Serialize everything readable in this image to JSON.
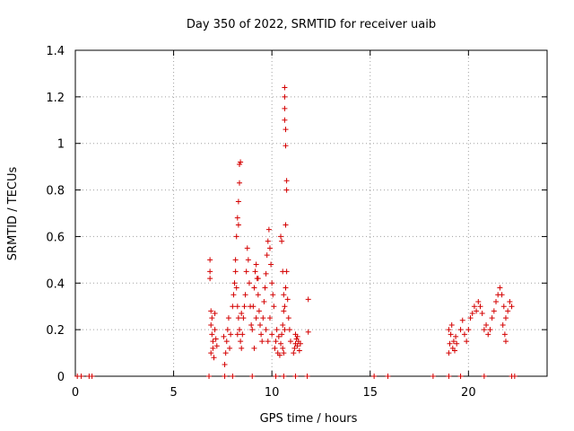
{
  "chart_data": {
    "type": "scatter",
    "title": "Day 350 of 2022, SRMTID for receiver uaib",
    "xlabel": "GPS time / hours",
    "ylabel": "SRMTID / TECUs",
    "xlim": [
      0,
      24
    ],
    "ylim": [
      0,
      1.4
    ],
    "xticks": [
      0,
      5,
      10,
      15,
      20
    ],
    "yticks": [
      0,
      0.2,
      0.4,
      0.6,
      0.8,
      1,
      1.2,
      1.4
    ],
    "ytick_labels": [
      "0",
      "0.2",
      "0.4",
      "0.6",
      "0.8",
      "1",
      "1.2",
      "1.4"
    ],
    "marker": "+",
    "color": "#d40000",
    "grid": true,
    "series": [
      {
        "name": "SRMTID",
        "points": [
          [
            0.1,
            0
          ],
          [
            0.3,
            0
          ],
          [
            0.7,
            0
          ],
          [
            0.85,
            0
          ],
          [
            6.8,
            0
          ],
          [
            7.6,
            0
          ],
          [
            8.0,
            0
          ],
          [
            9.0,
            0
          ],
          [
            10.2,
            0
          ],
          [
            10.6,
            0
          ],
          [
            11.2,
            0
          ],
          [
            11.8,
            0
          ],
          [
            15.2,
            0
          ],
          [
            15.9,
            0
          ],
          [
            18.2,
            0
          ],
          [
            19.0,
            0
          ],
          [
            19.6,
            0
          ],
          [
            20.8,
            0
          ],
          [
            22.2,
            0
          ],
          [
            22.35,
            0
          ],
          [
            6.85,
            0.5
          ],
          [
            6.85,
            0.45
          ],
          [
            6.85,
            0.42
          ],
          [
            6.9,
            0.28
          ],
          [
            6.95,
            0.25
          ],
          [
            6.9,
            0.22
          ],
          [
            6.95,
            0.18
          ],
          [
            7.0,
            0.15
          ],
          [
            7.0,
            0.12
          ],
          [
            6.9,
            0.1
          ],
          [
            7.05,
            0.08
          ],
          [
            7.1,
            0.2
          ],
          [
            7.1,
            0.27
          ],
          [
            7.15,
            0.16
          ],
          [
            7.2,
            0.13
          ],
          [
            7.6,
            0.05
          ],
          [
            7.65,
            0.1
          ],
          [
            7.7,
            0.15
          ],
          [
            7.75,
            0.2
          ],
          [
            7.8,
            0.25
          ],
          [
            7.85,
            0.12
          ],
          [
            7.9,
            0.18
          ],
          [
            7.55,
            0.17
          ],
          [
            8.0,
            0.3
          ],
          [
            8.05,
            0.35
          ],
          [
            8.1,
            0.4
          ],
          [
            8.15,
            0.5
          ],
          [
            8.2,
            0.6
          ],
          [
            8.25,
            0.68
          ],
          [
            8.3,
            0.75
          ],
          [
            8.35,
            0.83
          ],
          [
            8.35,
            0.91
          ],
          [
            8.4,
            0.92
          ],
          [
            8.3,
            0.65
          ],
          [
            8.15,
            0.45
          ],
          [
            8.2,
            0.38
          ],
          [
            8.25,
            0.3
          ],
          [
            8.3,
            0.25
          ],
          [
            8.35,
            0.2
          ],
          [
            8.4,
            0.15
          ],
          [
            8.45,
            0.12
          ],
          [
            8.5,
            0.18
          ],
          [
            8.55,
            0.25
          ],
          [
            8.6,
            0.3
          ],
          [
            8.65,
            0.35
          ],
          [
            8.7,
            0.45
          ],
          [
            8.75,
            0.55
          ],
          [
            8.8,
            0.5
          ],
          [
            8.85,
            0.4
          ],
          [
            8.9,
            0.3
          ],
          [
            8.95,
            0.22
          ],
          [
            8.25,
            0.18
          ],
          [
            8.45,
            0.27
          ],
          [
            9.0,
            0.2
          ],
          [
            9.05,
            0.3
          ],
          [
            9.1,
            0.38
          ],
          [
            9.15,
            0.45
          ],
          [
            9.2,
            0.48
          ],
          [
            9.25,
            0.42
          ],
          [
            9.3,
            0.35
          ],
          [
            9.35,
            0.28
          ],
          [
            9.4,
            0.22
          ],
          [
            9.45,
            0.18
          ],
          [
            9.5,
            0.15
          ],
          [
            9.1,
            0.12
          ],
          [
            9.2,
            0.25
          ],
          [
            9.3,
            0.42
          ],
          [
            9.55,
            0.25
          ],
          [
            9.6,
            0.32
          ],
          [
            9.65,
            0.38
          ],
          [
            9.7,
            0.44
          ],
          [
            9.75,
            0.52
          ],
          [
            9.8,
            0.58
          ],
          [
            9.85,
            0.63
          ],
          [
            9.9,
            0.55
          ],
          [
            9.95,
            0.48
          ],
          [
            10.0,
            0.4
          ],
          [
            10.05,
            0.35
          ],
          [
            10.1,
            0.3
          ],
          [
            9.7,
            0.2
          ],
          [
            9.8,
            0.15
          ],
          [
            9.9,
            0.25
          ],
          [
            10.0,
            0.18
          ],
          [
            10.15,
            0.12
          ],
          [
            10.2,
            0.15
          ],
          [
            10.25,
            0.2
          ],
          [
            10.3,
            0.1
          ],
          [
            10.35,
            0.17
          ],
          [
            10.4,
            0.09
          ],
          [
            10.45,
            0.6
          ],
          [
            10.5,
            0.58
          ],
          [
            10.55,
            0.45
          ],
          [
            10.6,
            0.35
          ],
          [
            10.6,
            0.28
          ],
          [
            10.55,
            0.22
          ],
          [
            10.5,
            0.18
          ],
          [
            10.45,
            0.14
          ],
          [
            10.55,
            0.12
          ],
          [
            10.6,
            0.1
          ],
          [
            10.65,
            0.2
          ],
          [
            10.65,
            0.3
          ],
          [
            10.7,
            0.38
          ],
          [
            10.75,
            0.45
          ],
          [
            10.8,
            0.33
          ],
          [
            10.85,
            0.25
          ],
          [
            10.9,
            0.2
          ],
          [
            10.95,
            0.15
          ],
          [
            10.65,
            1.24
          ],
          [
            10.65,
            1.2
          ],
          [
            10.65,
            1.15
          ],
          [
            10.65,
            1.1
          ],
          [
            10.7,
            1.06
          ],
          [
            10.7,
            0.99
          ],
          [
            10.75,
            0.84
          ],
          [
            10.75,
            0.8
          ],
          [
            10.7,
            0.65
          ],
          [
            11.1,
            0.1
          ],
          [
            11.15,
            0.12
          ],
          [
            11.2,
            0.14
          ],
          [
            11.25,
            0.16
          ],
          [
            11.3,
            0.13
          ],
          [
            11.35,
            0.15
          ],
          [
            11.4,
            0.11
          ],
          [
            11.45,
            0.14
          ],
          [
            11.2,
            0.18
          ],
          [
            11.3,
            0.17
          ],
          [
            11.85,
            0.33
          ],
          [
            11.85,
            0.19
          ],
          [
            19.0,
            0.1
          ],
          [
            19.05,
            0.14
          ],
          [
            19.1,
            0.18
          ],
          [
            19.15,
            0.22
          ],
          [
            19.0,
            0.2
          ],
          [
            19.2,
            0.12
          ],
          [
            19.25,
            0.15
          ],
          [
            19.3,
            0.11
          ],
          [
            19.35,
            0.17
          ],
          [
            19.4,
            0.14
          ],
          [
            19.6,
            0.2
          ],
          [
            19.7,
            0.24
          ],
          [
            19.8,
            0.18
          ],
          [
            19.9,
            0.15
          ],
          [
            20.0,
            0.2
          ],
          [
            20.1,
            0.25
          ],
          [
            20.2,
            0.27
          ],
          [
            20.3,
            0.3
          ],
          [
            20.4,
            0.28
          ],
          [
            20.5,
            0.32
          ],
          [
            20.6,
            0.3
          ],
          [
            20.7,
            0.27
          ],
          [
            20.8,
            0.2
          ],
          [
            20.9,
            0.22
          ],
          [
            21.0,
            0.18
          ],
          [
            21.1,
            0.2
          ],
          [
            21.2,
            0.25
          ],
          [
            21.3,
            0.28
          ],
          [
            21.4,
            0.32
          ],
          [
            21.5,
            0.35
          ],
          [
            21.6,
            0.38
          ],
          [
            21.7,
            0.35
          ],
          [
            21.8,
            0.3
          ],
          [
            21.9,
            0.25
          ],
          [
            22.0,
            0.28
          ],
          [
            22.1,
            0.32
          ],
          [
            22.2,
            0.3
          ],
          [
            21.75,
            0.22
          ],
          [
            21.85,
            0.18
          ],
          [
            21.9,
            0.15
          ]
        ]
      }
    ]
  }
}
